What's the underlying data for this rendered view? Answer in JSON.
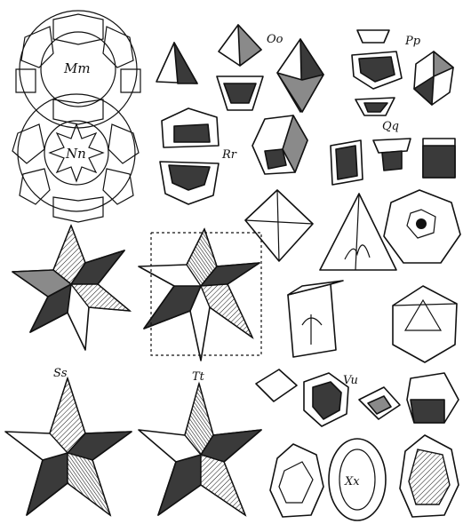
{
  "labels": {
    "mm": "Mm",
    "nn": "Nn",
    "oo": "Oo",
    "pp": "Pp",
    "qq": "Qq",
    "rr": "Rr",
    "ss": "Ss",
    "tt": "Tt",
    "vu": "Vu",
    "xx": "Xx"
  },
  "colors": {
    "ink": "#111111",
    "paper": "#ffffff",
    "shade_dark": "#3a3a3a",
    "shade_mid": "#8a8a8a"
  }
}
